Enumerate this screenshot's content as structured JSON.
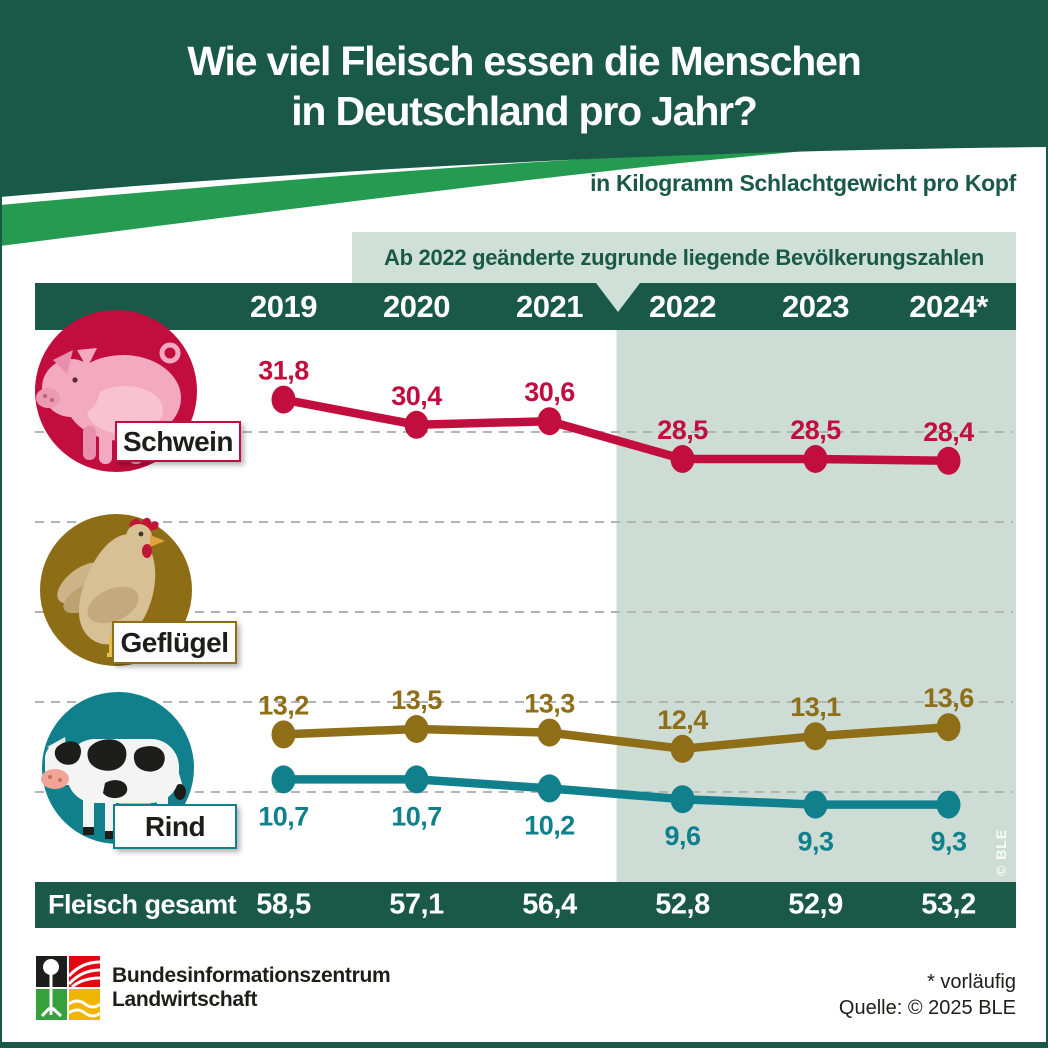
{
  "header": {
    "title_line1": "Wie viel Fleisch essen die Menschen",
    "title_line2": "in Deutschland pro Jahr?",
    "subtitle": "in Kilogramm Schlachtgewicht pro Kopf"
  },
  "banner": {
    "text": "Ab 2022 geänderte zugrunde liegende Bevölkerungszahlen"
  },
  "chart_data": {
    "type": "line",
    "unit": "Kilogramm Schlachtgewicht pro Kopf",
    "categories": [
      "2019",
      "2020",
      "2021",
      "2022",
      "2023",
      "2024*"
    ],
    "highlight_categories": [
      "2022",
      "2023",
      "2024*"
    ],
    "gridlines": [
      30,
      25,
      20,
      15,
      10
    ],
    "ylim": [
      5,
      35
    ],
    "series": [
      {
        "name": "Schwein",
        "color": "#c20e3f",
        "values": [
          31.8,
          30.4,
          30.6,
          28.5,
          28.5,
          28.4
        ],
        "labels": [
          "31,8",
          "30,4",
          "30,6",
          "28,5",
          "28,5",
          "28,4"
        ],
        "label_pos": "above"
      },
      {
        "name": "Geflügel",
        "color": "#8e6e16",
        "values": [
          13.2,
          13.5,
          13.3,
          12.4,
          13.1,
          13.6
        ],
        "labels": [
          "13,2",
          "13,5",
          "13,3",
          "12,4",
          "13,1",
          "13,6"
        ],
        "label_pos": "above"
      },
      {
        "name": "Rind",
        "color": "#10808c",
        "values": [
          10.7,
          10.7,
          10.2,
          9.6,
          9.3,
          9.3
        ],
        "labels": [
          "10,7",
          "10,7",
          "10,2",
          "9,6",
          "9,3",
          "9,3"
        ],
        "label_pos": "below"
      }
    ],
    "total_row": {
      "label": "Fleisch gesamt",
      "values": [
        "58,5",
        "57,1",
        "56,4",
        "52,8",
        "52,9",
        "53,2"
      ]
    },
    "watermark": "© BLE"
  },
  "footer": {
    "org_line1": "Bundesinformationszentrum",
    "org_line2": "Landwirtschaft",
    "footnote": "* vorläufig",
    "source": "Quelle: © 2025 BLE"
  },
  "colors": {
    "dark_green": "#1a5948",
    "bright_green": "#259b52",
    "banner_bg": "#cfe0d9",
    "highlight_bg": "#cdddd6",
    "gridline": "#b4b4b4",
    "text_dark": "#1d1d1b",
    "schwein": "#c20e3f",
    "gefluegel": "#8e6e16",
    "rind": "#10808c"
  }
}
